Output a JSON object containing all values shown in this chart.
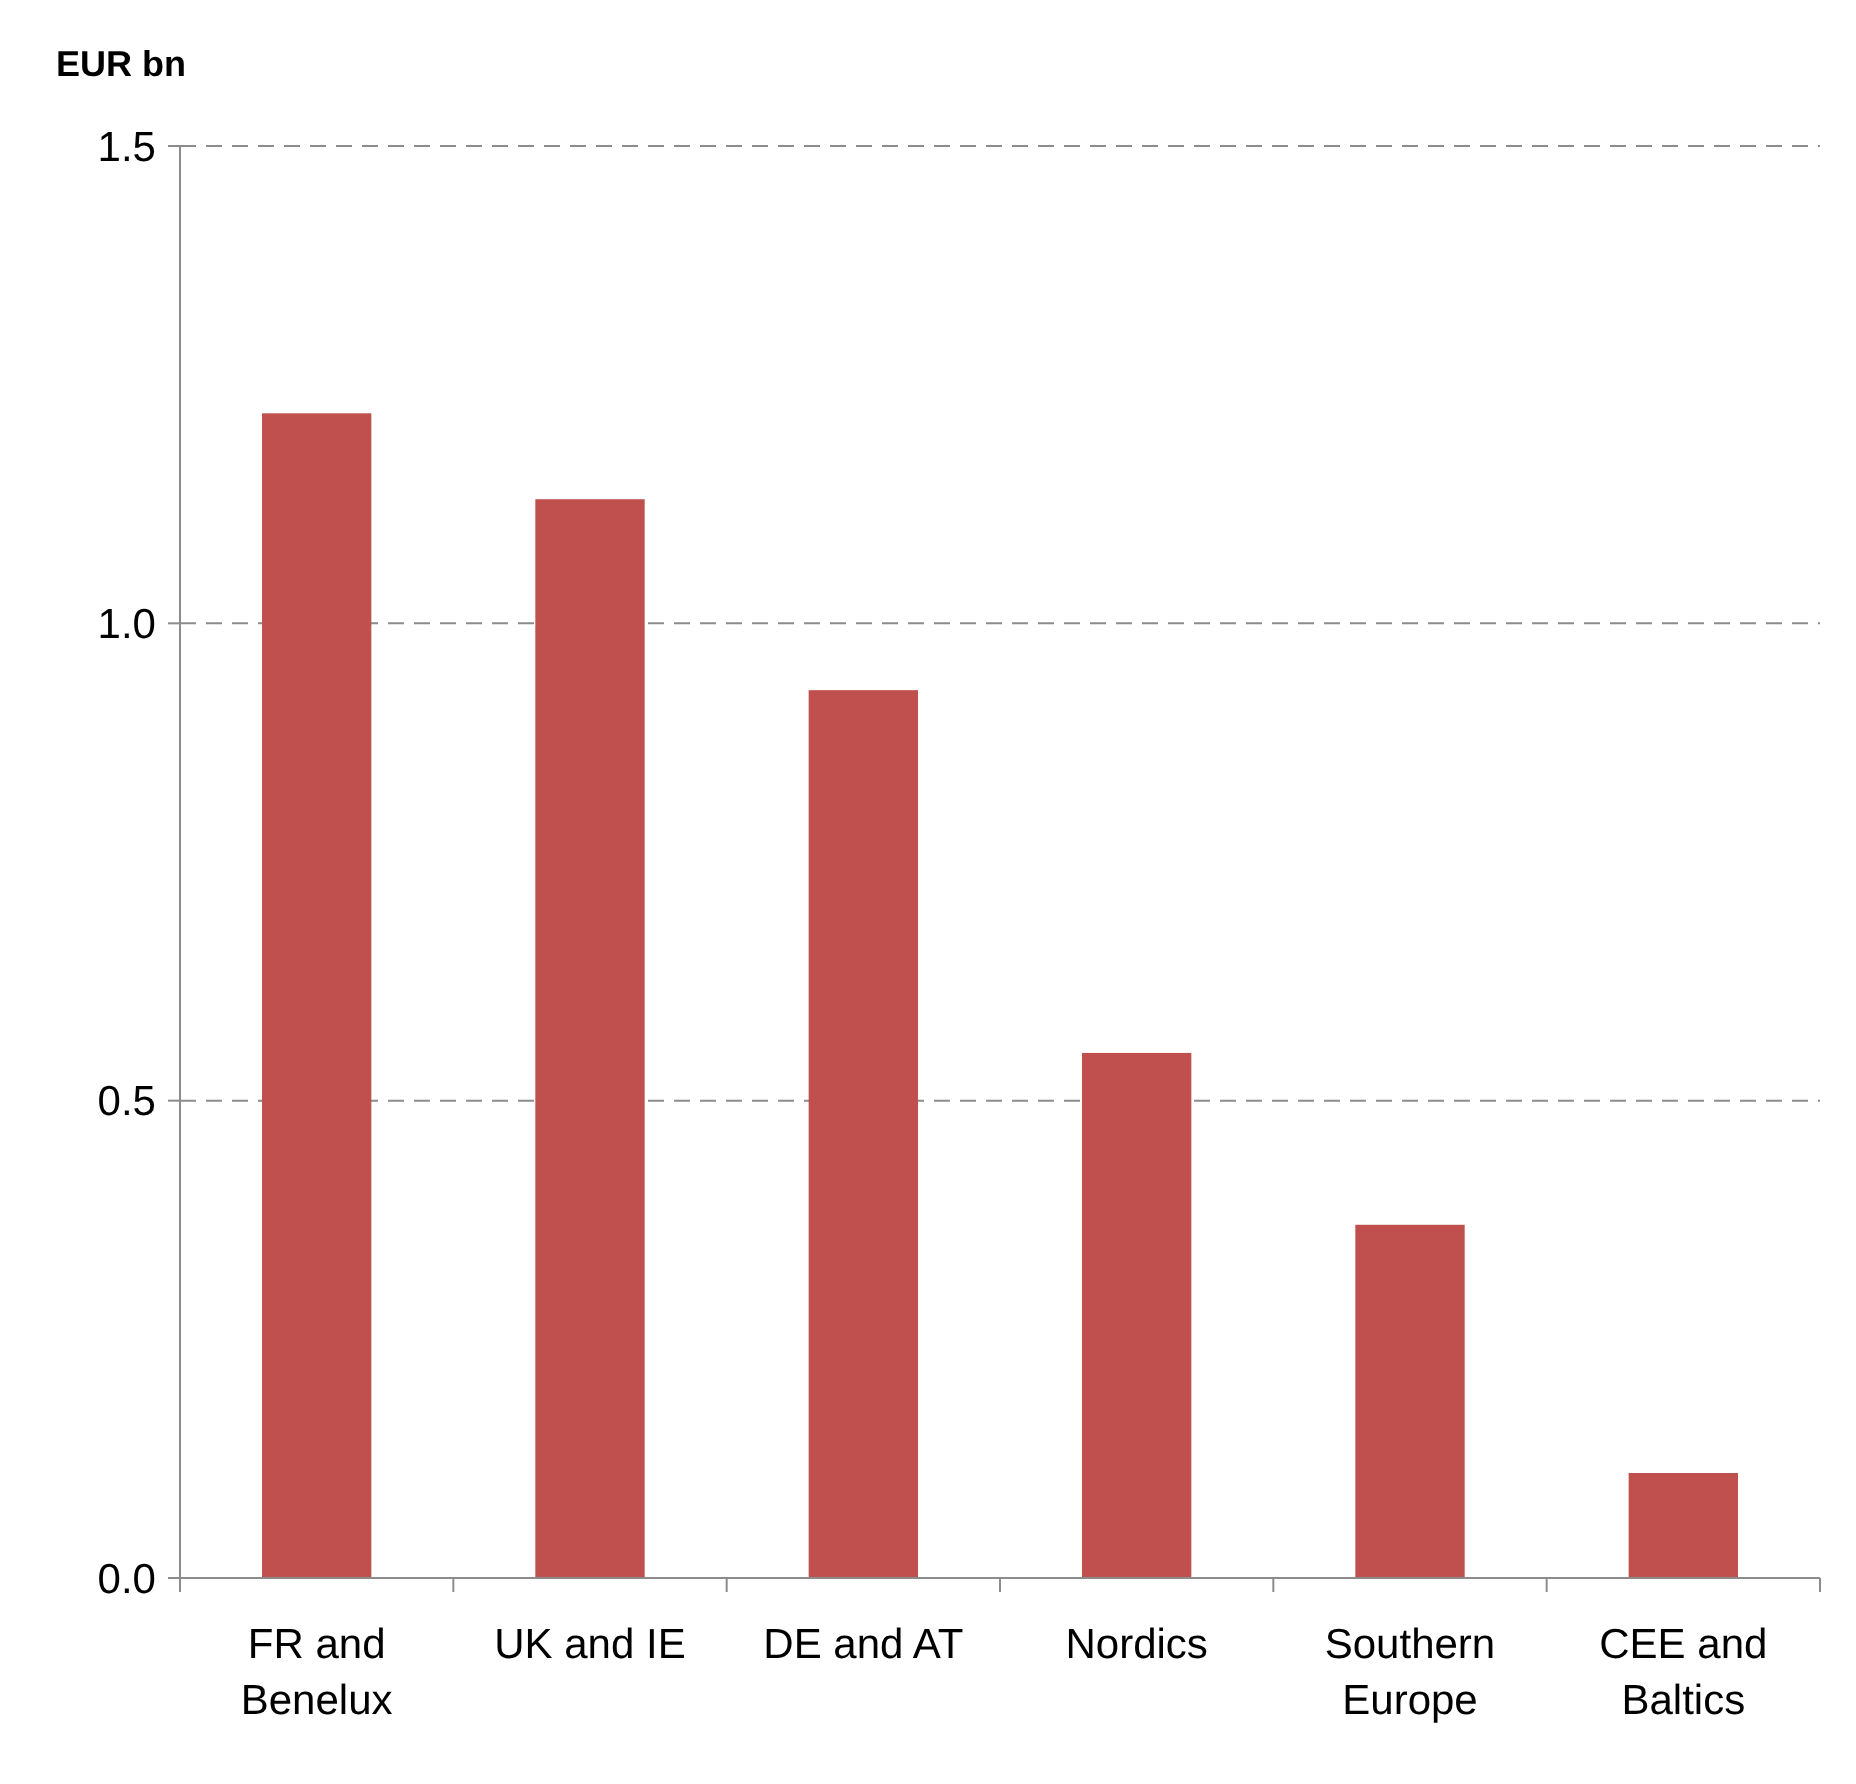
{
  "chart_data": {
    "type": "bar",
    "ylabel": "EUR bn",
    "categories": [
      "FR and Benelux",
      "UK and IE",
      "DE and AT",
      "Nordics",
      "Southern Europe",
      "CEE and Baltics"
    ],
    "values": [
      1.22,
      1.13,
      0.93,
      0.55,
      0.37,
      0.11
    ],
    "color": "#c0504d",
    "ylim": [
      0,
      1.5
    ],
    "yticks": [
      {
        "value": 0,
        "label": "0.0"
      },
      {
        "value": 0.5,
        "label": "0.5"
      },
      {
        "value": 1,
        "label": "1.0"
      },
      {
        "value": 1.5,
        "label": "1.5"
      }
    ],
    "grid": "y"
  }
}
